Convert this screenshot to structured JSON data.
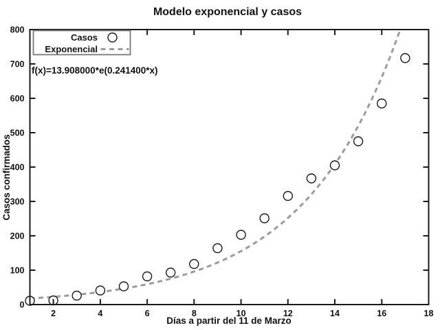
{
  "figure": {
    "title": "Modelo exponencial y casos",
    "equation_label": "f(x)=13.908000*e(0.241400*x)"
  },
  "legend": {
    "position": "top-left",
    "entries": [
      {
        "label": "Casos",
        "symbol": "open-circle-marker"
      },
      {
        "label": "Exponencial",
        "symbol": "gray-dashed-line"
      }
    ]
  },
  "colors": {
    "background": "#ffffff",
    "frame": "#1a1a1a",
    "text": "#111111",
    "marker_stroke": "#1a1a1a",
    "fit_line": "#9b9b9b",
    "legend_border": "#777777"
  },
  "chart_data": {
    "type": "scatter",
    "title": "Modelo exponencial y casos",
    "xlabel": "Días a partir del 11 de Marzo",
    "ylabel": "Casos confirmados",
    "xlim": [
      1,
      18
    ],
    "ylim": [
      0,
      800
    ],
    "xticks": [
      2,
      4,
      6,
      8,
      10,
      12,
      14,
      16,
      18
    ],
    "yticks": [
      0,
      100,
      200,
      300,
      400,
      500,
      600,
      700,
      800
    ],
    "grid": false,
    "legend_position": "top-left",
    "series": [
      {
        "name": "Casos",
        "type": "scatter",
        "marker": "open-circle",
        "color": "#1a1a1a",
        "x": [
          1,
          2,
          3,
          4,
          5,
          6,
          7,
          8,
          9,
          10,
          11,
          12,
          13,
          14,
          15,
          16,
          17
        ],
        "y": [
          11,
          12,
          26,
          41,
          53,
          82,
          93,
          118,
          164,
          203,
          251,
          316,
          367,
          405,
          475,
          585,
          717
        ]
      },
      {
        "name": "Exponencial",
        "type": "line",
        "style": "dashed",
        "color": "#9b9b9b",
        "model": "a*e^(b*x)",
        "a": 13.908,
        "b": 0.2414,
        "x_range": [
          1,
          18
        ]
      }
    ]
  }
}
